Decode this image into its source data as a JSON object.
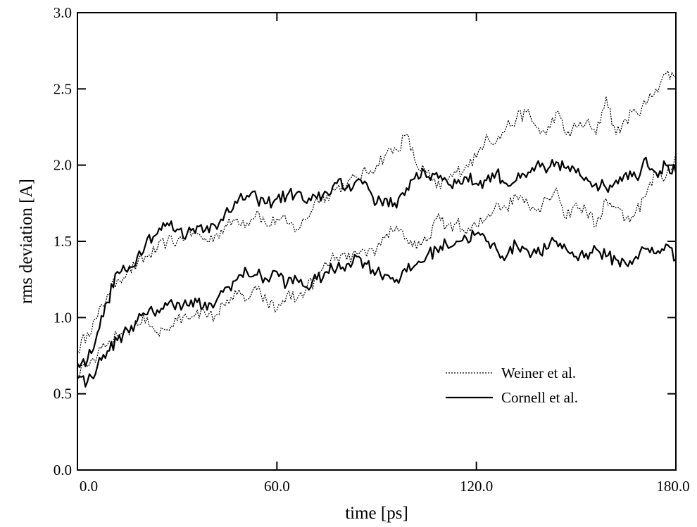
{
  "chart_data": {
    "type": "line",
    "title": "",
    "xlabel": "time [ps]",
    "ylabel": "rms deviation [A]",
    "xlim": [
      0,
      180
    ],
    "ylim": [
      0,
      3.0
    ],
    "x_ticks": [
      0,
      60,
      120,
      180
    ],
    "x_tick_labels": [
      "0.0",
      "60.0",
      "120.0",
      "180.0"
    ],
    "y_ticks": [
      0,
      0.5,
      1.0,
      1.5,
      2.0,
      2.5,
      3.0
    ],
    "y_tick_labels": [
      "0.0",
      "0.5",
      "1.0",
      "1.5",
      "2.0",
      "2.5",
      "3.0"
    ],
    "grid": false,
    "legend_position": "lower-right",
    "legend": [
      {
        "label": "Weiner et al.",
        "style": "dotted"
      },
      {
        "label": "Cornell et al.",
        "style": "solid"
      }
    ],
    "series": [
      {
        "name": "Weiner et al. (upper)",
        "legend": "Weiner et al.",
        "style": "dotted",
        "x": [
          0,
          3,
          6,
          9,
          12,
          15,
          18,
          21,
          24,
          27,
          30,
          33,
          36,
          39,
          42,
          45,
          48,
          51,
          54,
          57,
          60,
          63,
          66,
          69,
          72,
          75,
          78,
          81,
          84,
          87,
          90,
          93,
          96,
          99,
          102,
          105,
          108,
          111,
          114,
          117,
          120,
          123,
          126,
          129,
          132,
          135,
          138,
          141,
          144,
          147,
          150,
          153,
          156,
          159,
          162,
          165,
          168,
          171,
          174,
          177,
          180
        ],
        "values": [
          0.78,
          0.9,
          1.0,
          1.15,
          1.25,
          1.3,
          1.35,
          1.4,
          1.45,
          1.5,
          1.5,
          1.55,
          1.55,
          1.5,
          1.55,
          1.6,
          1.65,
          1.62,
          1.7,
          1.6,
          1.65,
          1.62,
          1.58,
          1.65,
          1.78,
          1.8,
          1.85,
          1.87,
          1.92,
          1.95,
          2.0,
          2.08,
          2.1,
          2.2,
          2.0,
          1.95,
          1.85,
          1.9,
          1.95,
          2.0,
          2.05,
          2.2,
          2.15,
          2.25,
          2.3,
          2.35,
          2.25,
          2.2,
          2.35,
          2.2,
          2.25,
          2.28,
          2.2,
          2.45,
          2.2,
          2.3,
          2.35,
          2.4,
          2.5,
          2.6,
          2.58
        ]
      },
      {
        "name": "Cornell et al. (upper)",
        "legend": "Cornell et al.",
        "style": "solid",
        "x": [
          0,
          3,
          6,
          9,
          12,
          15,
          18,
          21,
          24,
          27,
          30,
          33,
          36,
          39,
          42,
          45,
          48,
          51,
          54,
          57,
          60,
          63,
          66,
          69,
          72,
          75,
          78,
          81,
          84,
          87,
          90,
          93,
          96,
          99,
          102,
          105,
          108,
          111,
          114,
          117,
          120,
          123,
          126,
          129,
          132,
          135,
          138,
          141,
          144,
          147,
          150,
          153,
          156,
          159,
          162,
          165,
          168,
          171,
          174,
          177,
          180
        ],
        "values": [
          0.7,
          0.72,
          0.9,
          1.1,
          1.3,
          1.3,
          1.4,
          1.52,
          1.55,
          1.62,
          1.58,
          1.55,
          1.6,
          1.6,
          1.58,
          1.72,
          1.75,
          1.8,
          1.78,
          1.75,
          1.78,
          1.8,
          1.82,
          1.75,
          1.78,
          1.82,
          1.88,
          1.85,
          1.9,
          1.88,
          1.75,
          1.78,
          1.72,
          1.85,
          1.95,
          1.92,
          1.95,
          1.9,
          1.88,
          1.92,
          1.88,
          1.9,
          1.95,
          1.88,
          1.9,
          1.92,
          2.0,
          1.95,
          2.02,
          1.98,
          1.95,
          1.92,
          1.88,
          1.85,
          1.9,
          1.95,
          1.92,
          2.05,
          1.95,
          2.0,
          1.95
        ]
      },
      {
        "name": "Weiner et al. (lower)",
        "legend": "Weiner et al.",
        "style": "dotted",
        "x": [
          0,
          3,
          6,
          9,
          12,
          15,
          18,
          21,
          24,
          27,
          30,
          33,
          36,
          39,
          42,
          45,
          48,
          51,
          54,
          57,
          60,
          63,
          66,
          69,
          72,
          75,
          78,
          81,
          84,
          87,
          90,
          93,
          96,
          99,
          102,
          105,
          108,
          111,
          114,
          117,
          120,
          123,
          126,
          129,
          132,
          135,
          138,
          141,
          144,
          147,
          150,
          153,
          156,
          159,
          162,
          165,
          168,
          171,
          174,
          177,
          180
        ],
        "values": [
          0.62,
          0.68,
          0.75,
          0.82,
          0.88,
          0.92,
          0.95,
          1.0,
          0.9,
          0.92,
          0.98,
          1.0,
          1.05,
          1.0,
          1.02,
          1.12,
          1.15,
          1.12,
          1.18,
          1.1,
          1.05,
          1.15,
          1.12,
          1.2,
          1.25,
          1.35,
          1.4,
          1.38,
          1.42,
          1.4,
          1.45,
          1.55,
          1.6,
          1.52,
          1.45,
          1.5,
          1.65,
          1.6,
          1.62,
          1.55,
          1.6,
          1.65,
          1.75,
          1.72,
          1.8,
          1.78,
          1.7,
          1.78,
          1.85,
          1.65,
          1.75,
          1.7,
          1.6,
          1.78,
          1.72,
          1.65,
          1.7,
          1.8,
          1.95,
          1.92,
          2.08
        ]
      },
      {
        "name": "Cornell et al. (lower)",
        "legend": "Cornell et al.",
        "style": "solid",
        "x": [
          0,
          3,
          6,
          9,
          12,
          15,
          18,
          21,
          24,
          27,
          30,
          33,
          36,
          39,
          42,
          45,
          48,
          51,
          54,
          57,
          60,
          63,
          66,
          69,
          72,
          75,
          78,
          81,
          84,
          87,
          90,
          93,
          96,
          99,
          102,
          105,
          108,
          111,
          114,
          117,
          120,
          123,
          126,
          129,
          132,
          135,
          138,
          141,
          144,
          147,
          150,
          153,
          156,
          159,
          162,
          165,
          168,
          171,
          174,
          177,
          180
        ],
        "values": [
          0.6,
          0.58,
          0.68,
          0.78,
          0.85,
          0.92,
          0.98,
          1.02,
          1.05,
          1.08,
          1.1,
          1.08,
          1.1,
          1.05,
          1.12,
          1.2,
          1.25,
          1.3,
          1.28,
          1.25,
          1.3,
          1.22,
          1.25,
          1.2,
          1.25,
          1.3,
          1.32,
          1.35,
          1.4,
          1.35,
          1.3,
          1.28,
          1.25,
          1.3,
          1.35,
          1.4,
          1.45,
          1.48,
          1.5,
          1.52,
          1.55,
          1.5,
          1.45,
          1.4,
          1.48,
          1.45,
          1.42,
          1.45,
          1.5,
          1.45,
          1.4,
          1.42,
          1.45,
          1.4,
          1.38,
          1.35,
          1.4,
          1.45,
          1.42,
          1.48,
          1.38
        ]
      }
    ]
  }
}
